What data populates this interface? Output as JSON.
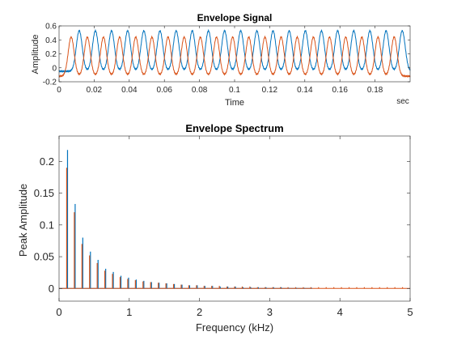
{
  "chart_data": [
    {
      "type": "line",
      "title": "Envelope Signal",
      "xlabel": "Time",
      "ylabel": "Amplitude",
      "x_unit": "sec",
      "xlim": [
        0,
        0.2
      ],
      "ylim": [
        -0.2,
        0.6
      ],
      "xticks": [
        "0",
        "0.02",
        "0.04",
        "0.06",
        "0.08",
        "0.1",
        "0.12",
        "0.14",
        "0.16",
        "0.18"
      ],
      "yticks": [
        "-0.2",
        "0",
        "0.2",
        "0.4",
        "0.6"
      ],
      "grid": false,
      "series": [
        {
          "color": "#0072BD",
          "peak_times": [
            0.0115,
            0.0207,
            0.0299,
            0.0391,
            0.0483,
            0.0575,
            0.0667,
            0.0759,
            0.0851,
            0.0943,
            0.1035,
            0.1127,
            0.1219,
            0.1311,
            0.1403,
            0.1495,
            0.1587,
            0.1679,
            0.1771,
            0.1863,
            0.1955
          ],
          "peak": 0.53,
          "baseline": -0.05
        },
        {
          "color": "#D95319",
          "peak_times": [
            0.0069,
            0.0161,
            0.0253,
            0.0345,
            0.0437,
            0.0529,
            0.0621,
            0.0713,
            0.0805,
            0.0897,
            0.0989,
            0.1081,
            0.1173,
            0.1265,
            0.1357,
            0.1449,
            0.1541,
            0.1633,
            0.1725,
            0.1817,
            0.1909
          ],
          "peak": 0.44,
          "baseline": -0.12
        }
      ]
    },
    {
      "type": "bar",
      "title": "Envelope Spectrum",
      "xlabel": "Frequency (kHz)",
      "ylabel": "Peak Amplitude",
      "xlim": [
        0,
        5
      ],
      "ylim": [
        -0.02,
        0.24
      ],
      "xticks": [
        "0",
        "1",
        "2",
        "3",
        "4",
        "5"
      ],
      "yticks": [
        "0",
        "0.05",
        "0.1",
        "0.15",
        "0.2"
      ],
      "grid": false,
      "series": [
        {
          "color": "#0072BD",
          "fundamental_khz": 0.1087,
          "x_max_khz": 3.6,
          "harmonic_values": [
            0.218,
            0.133,
            0.08,
            0.058,
            0.045,
            0.031,
            0.026,
            0.02,
            0.017,
            0.014,
            0.012,
            0.01,
            0.009,
            0.008,
            0.007,
            0.006,
            0.005,
            0.005,
            0.004,
            0.004,
            0.003,
            0.003,
            0.003,
            0.002,
            0.002,
            0.002,
            0.002,
            0.002,
            0.002,
            0.001,
            0.001,
            0.001,
            0.001
          ]
        },
        {
          "color": "#D95319",
          "fundamental_khz": 0.1087,
          "x_max_khz": 5.0,
          "harmonic_values": [
            0.19,
            0.12,
            0.07,
            0.052,
            0.04,
            0.028,
            0.023,
            0.018,
            0.015,
            0.013,
            0.011,
            0.01,
            0.009,
            0.008,
            0.007,
            0.006,
            0.005,
            0.005,
            0.004,
            0.004,
            0.004,
            0.003,
            0.003,
            0.003,
            0.003,
            0.002,
            0.002,
            0.002,
            0.002,
            0.002,
            0.002,
            0.002,
            0.002,
            0.002,
            0.002,
            0.002,
            0.002,
            0.002,
            0.002,
            0.002,
            0.002,
            0.002,
            0.002,
            0.002,
            0.002,
            0.002
          ]
        }
      ]
    }
  ]
}
